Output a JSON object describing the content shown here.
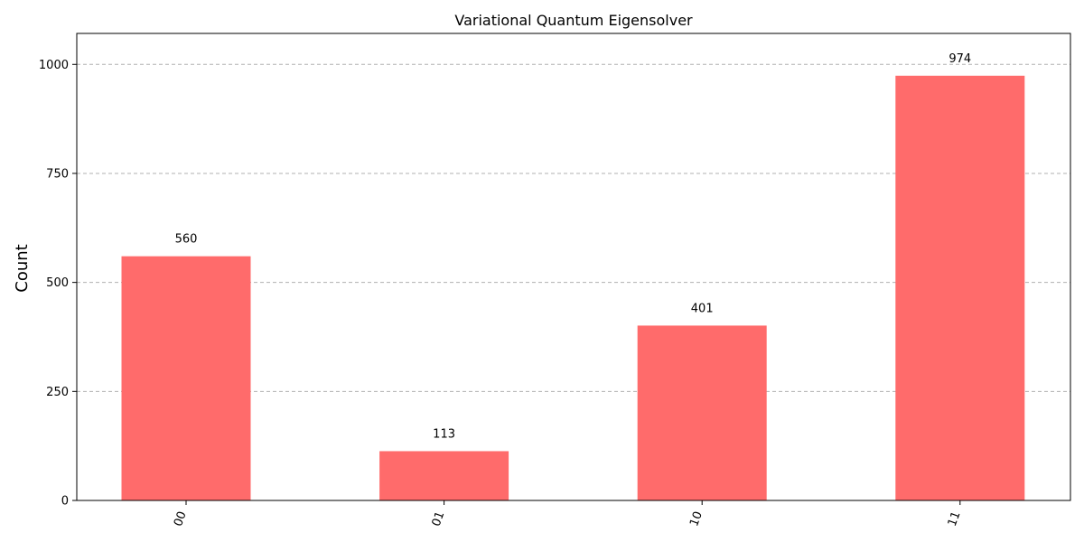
{
  "chart_data": {
    "type": "bar",
    "title": "Variational Quantum Eigensolver",
    "xlabel": "",
    "ylabel": "Count",
    "categories": [
      "00",
      "01",
      "10",
      "11"
    ],
    "values": [
      560,
      113,
      401,
      974
    ],
    "ylim": [
      0,
      1071
    ],
    "yticks": [
      0,
      250,
      500,
      750,
      1000
    ],
    "bar_color": "#ff6b6b",
    "grid": true
  }
}
